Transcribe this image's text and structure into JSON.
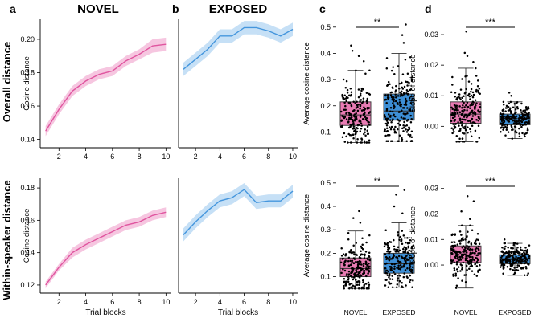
{
  "panels": {
    "a": {
      "letter": "a",
      "title": "NOVEL"
    },
    "b": {
      "letter": "b",
      "title": "EXPOSED"
    },
    "c": {
      "letter": "c"
    },
    "d": {
      "letter": "d"
    }
  },
  "row_labels": {
    "top": "Overall distance",
    "bottom": "Within-speaker distance"
  },
  "colors": {
    "novel": "#e0559f",
    "novel_band": "#f5bcdb",
    "exposed": "#4596dd",
    "exposed_band": "#bcdaf5",
    "box_novel": "#e87bb3",
    "box_exposed": "#3d8fd6"
  },
  "chart_data": [
    {
      "id": "top-novel",
      "type": "line",
      "title": "NOVEL",
      "xlabel": "",
      "ylabel": "Cosine distance",
      "xlim": [
        0.6,
        10.4
      ],
      "ylim": [
        0.135,
        0.212
      ],
      "xticks": [
        2,
        4,
        6,
        8,
        10
      ],
      "xtick_labels": [
        "2",
        "4",
        "6",
        "8",
        "10"
      ],
      "yticks": [
        0.14,
        0.16,
        0.18,
        0.2
      ],
      "ytick_labels": [
        "0.14",
        "0.16",
        "0.18",
        "0.20"
      ],
      "series": [
        {
          "name": "NOVEL",
          "x": [
            1,
            2,
            3,
            4,
            5,
            6,
            7,
            8,
            9,
            10
          ],
          "values": [
            0.145,
            0.158,
            0.169,
            0.175,
            0.179,
            0.181,
            0.187,
            0.191,
            0.196,
            0.197
          ],
          "lower": [
            0.142,
            0.155,
            0.166,
            0.172,
            0.176,
            0.178,
            0.184,
            0.188,
            0.192,
            0.193
          ],
          "upper": [
            0.148,
            0.161,
            0.172,
            0.178,
            0.182,
            0.184,
            0.19,
            0.194,
            0.2,
            0.201
          ]
        }
      ]
    },
    {
      "id": "top-exposed",
      "type": "line",
      "title": "EXPOSED",
      "xlabel": "",
      "ylabel": "",
      "xlim": [
        0.6,
        10.4
      ],
      "ylim": [
        0.135,
        0.212
      ],
      "xticks": [
        2,
        4,
        6,
        8,
        10
      ],
      "xtick_labels": [
        "2",
        "4",
        "6",
        "8",
        "10"
      ],
      "yticks": [],
      "ytick_labels": [],
      "series": [
        {
          "name": "EXPOSED",
          "x": [
            1,
            2,
            3,
            4,
            5,
            6,
            7,
            8,
            9,
            10
          ],
          "values": [
            0.182,
            0.188,
            0.194,
            0.202,
            0.202,
            0.207,
            0.207,
            0.205,
            0.202,
            0.206
          ],
          "lower": [
            0.178,
            0.184,
            0.19,
            0.198,
            0.198,
            0.203,
            0.203,
            0.201,
            0.198,
            0.202
          ],
          "upper": [
            0.186,
            0.192,
            0.198,
            0.206,
            0.206,
            0.211,
            0.211,
            0.209,
            0.206,
            0.21
          ]
        }
      ]
    },
    {
      "id": "bottom-novel",
      "type": "line",
      "title": "",
      "xlabel": "Trial blocks",
      "ylabel": "Cosine distance",
      "xlim": [
        0.6,
        10.4
      ],
      "ylim": [
        0.115,
        0.186
      ],
      "xticks": [
        2,
        4,
        6,
        8,
        10
      ],
      "xtick_labels": [
        "2",
        "4",
        "6",
        "8",
        "10"
      ],
      "yticks": [
        0.12,
        0.14,
        0.16,
        0.18
      ],
      "ytick_labels": [
        "0.12",
        "0.14",
        "0.16",
        "0.18"
      ],
      "series": [
        {
          "name": "NOVEL",
          "x": [
            1,
            2,
            3,
            4,
            5,
            6,
            7,
            8,
            9,
            10
          ],
          "values": [
            0.12,
            0.131,
            0.14,
            0.145,
            0.149,
            0.153,
            0.157,
            0.159,
            0.163,
            0.165
          ],
          "lower": [
            0.118,
            0.129,
            0.137,
            0.142,
            0.146,
            0.15,
            0.154,
            0.156,
            0.16,
            0.162
          ],
          "upper": [
            0.122,
            0.133,
            0.143,
            0.148,
            0.152,
            0.156,
            0.16,
            0.162,
            0.166,
            0.168
          ]
        }
      ]
    },
    {
      "id": "bottom-exposed",
      "type": "line",
      "title": "",
      "xlabel": "Trial blocks",
      "ylabel": "",
      "xlim": [
        0.6,
        10.4
      ],
      "ylim": [
        0.115,
        0.186
      ],
      "xticks": [
        2,
        4,
        6,
        8,
        10
      ],
      "xtick_labels": [
        "2",
        "4",
        "6",
        "8",
        "10"
      ],
      "yticks": [],
      "ytick_labels": [],
      "series": [
        {
          "name": "EXPOSED",
          "x": [
            1,
            2,
            3,
            4,
            5,
            6,
            7,
            8,
            9,
            10
          ],
          "values": [
            0.151,
            0.159,
            0.166,
            0.172,
            0.174,
            0.179,
            0.171,
            0.172,
            0.172,
            0.178
          ],
          "lower": [
            0.147,
            0.155,
            0.162,
            0.168,
            0.17,
            0.175,
            0.167,
            0.168,
            0.168,
            0.174
          ],
          "upper": [
            0.155,
            0.163,
            0.17,
            0.176,
            0.178,
            0.183,
            0.175,
            0.176,
            0.176,
            0.182
          ]
        }
      ]
    },
    {
      "id": "top-avg",
      "type": "box",
      "title": "",
      "xlabel": "",
      "ylabel": "Average cosine distance",
      "ylim": [
        0.04,
        0.53
      ],
      "yticks": [
        0.1,
        0.2,
        0.3,
        0.4,
        0.5
      ],
      "ytick_labels": [
        "0.1",
        "0.2",
        "0.3",
        "0.4",
        "0.5"
      ],
      "categories": [
        "NOVEL",
        "EXPOSED"
      ],
      "show_category_labels": false,
      "boxes": [
        {
          "name": "NOVEL",
          "whisker_low": 0.06,
          "q1": 0.125,
          "median": 0.165,
          "q3": 0.215,
          "whisker_high": 0.335,
          "n": 200,
          "outliers": [
            0.37,
            0.39,
            0.41,
            0.43
          ]
        },
        {
          "name": "EXPOSED",
          "whisker_low": 0.065,
          "q1": 0.145,
          "median": 0.18,
          "q3": 0.245,
          "whisker_high": 0.4,
          "n": 200,
          "outliers": [
            0.44,
            0.47,
            0.51
          ]
        }
      ],
      "significance": "**"
    },
    {
      "id": "top-slope",
      "type": "box",
      "title": "",
      "xlabel": "",
      "ylabel": "Slope of distance",
      "ylim": [
        -0.007,
        0.035
      ],
      "yticks": [
        0.0,
        0.01,
        0.02,
        0.03
      ],
      "ytick_labels": [
        "0.00",
        "0.01",
        "0.02",
        "0.03"
      ],
      "categories": [
        "NOVEL",
        "EXPOSED"
      ],
      "show_category_labels": false,
      "boxes": [
        {
          "name": "NOVEL",
          "whisker_low": -0.005,
          "q1": 0.001,
          "median": 0.004,
          "q3": 0.008,
          "whisker_high": 0.019,
          "n": 200,
          "outliers": [
            0.021,
            0.023,
            0.024,
            0.031
          ]
        },
        {
          "name": "EXPOSED",
          "whisker_low": -0.004,
          "q1": 0.0005,
          "median": 0.0025,
          "q3": 0.004,
          "whisker_high": 0.008,
          "n": 200,
          "outliers": [
            0.01,
            0.011
          ]
        }
      ],
      "significance": "***"
    },
    {
      "id": "bottom-avg",
      "type": "box",
      "title": "",
      "xlabel": "",
      "ylabel": "Average cosine distance",
      "ylim": [
        0.03,
        0.52
      ],
      "yticks": [
        0.1,
        0.2,
        0.3,
        0.4,
        0.5
      ],
      "ytick_labels": [
        "0.1",
        "0.2",
        "0.3",
        "0.4",
        "0.5"
      ],
      "categories": [
        "NOVEL",
        "EXPOSED"
      ],
      "show_category_labels": true,
      "boxes": [
        {
          "name": "NOVEL",
          "whisker_low": 0.05,
          "q1": 0.1,
          "median": 0.135,
          "q3": 0.18,
          "whisker_high": 0.295,
          "n": 200,
          "outliers": [
            0.33,
            0.35,
            0.38
          ]
        },
        {
          "name": "EXPOSED",
          "whisker_low": 0.055,
          "q1": 0.115,
          "median": 0.155,
          "q3": 0.2,
          "whisker_high": 0.33,
          "n": 200,
          "outliers": [
            0.37,
            0.4,
            0.45,
            0.47
          ]
        }
      ],
      "significance": "**"
    },
    {
      "id": "bottom-slope",
      "type": "box",
      "title": "",
      "xlabel": "",
      "ylabel": "Slope of distance",
      "ylim": [
        -0.011,
        0.034
      ],
      "yticks": [
        0.0,
        0.01,
        0.02,
        0.03
      ],
      "ytick_labels": [
        "0.00",
        "0.01",
        "0.02",
        "0.03"
      ],
      "categories": [
        "NOVEL",
        "EXPOSED"
      ],
      "show_category_labels": true,
      "boxes": [
        {
          "name": "NOVEL",
          "whisker_low": -0.009,
          "q1": 0.001,
          "median": 0.004,
          "q3": 0.0075,
          "whisker_high": 0.0155,
          "n": 200,
          "outliers": [
            0.018,
            0.021,
            0.025,
            0.027
          ]
        },
        {
          "name": "EXPOSED",
          "whisker_low": -0.004,
          "q1": 0.0005,
          "median": 0.0025,
          "q3": 0.004,
          "whisker_high": 0.0085,
          "n": 200,
          "outliers": [
            0.01
          ]
        }
      ],
      "significance": "***"
    }
  ]
}
